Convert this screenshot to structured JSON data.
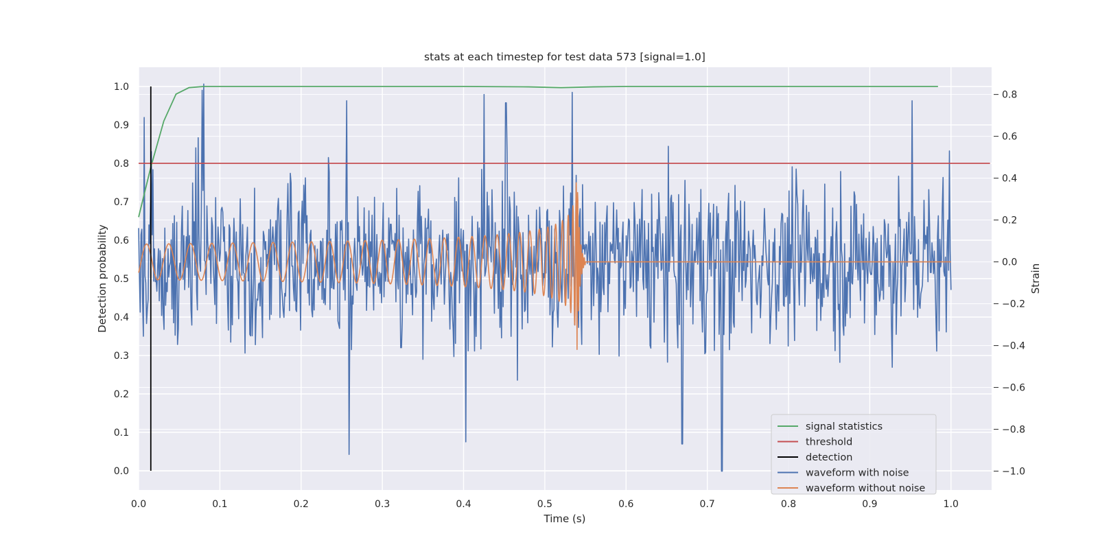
{
  "chart_data": {
    "type": "line",
    "title": "stats at each timestep for test data 573 [signal=1.0]",
    "xlabel": "Time (s)",
    "ylabel_left": "Detection probability",
    "ylabel_right": "Strain",
    "xlim": [
      0.0,
      1.05
    ],
    "ylim_left": [
      -0.05,
      1.05
    ],
    "ylim_right": [
      -1.09,
      0.93
    ],
    "x_ticks": [
      "0.0",
      "0.1",
      "0.2",
      "0.3",
      "0.4",
      "0.5",
      "0.6",
      "0.7",
      "0.8",
      "0.9",
      "1.0"
    ],
    "y_left_ticks": [
      "0.0",
      "0.1",
      "0.2",
      "0.3",
      "0.4",
      "0.5",
      "0.6",
      "0.7",
      "0.8",
      "0.9",
      "1.0"
    ],
    "y_right_ticks": [
      "−1.0",
      "−0.8",
      "−0.6",
      "−0.4",
      "−0.2",
      "0.0",
      "0.2",
      "0.4",
      "0.6",
      "0.8"
    ],
    "grid": true,
    "legend_position": "lower-right",
    "series": [
      {
        "name": "signal statistics",
        "axis": "left",
        "color": "#55a868",
        "x": [
          0.0,
          0.015,
          0.031,
          0.046,
          0.062,
          0.08,
          0.1,
          0.2,
          0.3,
          0.4,
          0.48,
          0.52,
          0.56,
          0.6,
          0.7,
          0.8,
          0.9,
          0.984
        ],
        "y": [
          0.66,
          0.79,
          0.91,
          0.98,
          0.997,
          1.0,
          1.0,
          1.0,
          1.0,
          1.0,
          0.999,
          0.997,
          0.999,
          1.0,
          1.0,
          1.0,
          1.0,
          1.0
        ]
      },
      {
        "name": "threshold",
        "axis": "left",
        "color": "#c44e52",
        "x": [
          0.0,
          1.048
        ],
        "y": [
          0.8,
          0.8
        ]
      },
      {
        "name": "detection",
        "axis": "left",
        "color": "#000000",
        "x": [
          0.015,
          0.015
        ],
        "y": [
          0.0,
          1.0
        ]
      },
      {
        "name": "waveform with noise",
        "axis": "right",
        "color": "#4c72b0",
        "n_points": 1024,
        "x_range": [
          0.0,
          1.0
        ],
        "amplitude": 0.33,
        "highlights": [
          [
            0.007,
            0.69
          ],
          [
            0.08,
            0.85
          ],
          [
            0.078,
            0.82
          ],
          [
            0.256,
            0.77
          ],
          [
            0.323,
            -0.41
          ],
          [
            0.259,
            -0.92
          ],
          [
            0.403,
            -0.86
          ],
          [
            0.425,
            0.8
          ],
          [
            0.452,
            0.76
          ],
          [
            0.534,
            0.81
          ],
          [
            0.718,
            -1.0
          ],
          [
            0.669,
            -0.87
          ],
          [
            0.952,
            0.77
          ],
          [
            0.998,
            0.53
          ]
        ]
      },
      {
        "name": "waveform without noise",
        "axis": "right",
        "color": "#dd8452",
        "x_range": [
          0.0,
          1.0
        ],
        "merger_time": 0.54,
        "y_start_amplitude": 0.085,
        "y_peak": 0.43,
        "y_min": -0.43
      }
    ]
  }
}
